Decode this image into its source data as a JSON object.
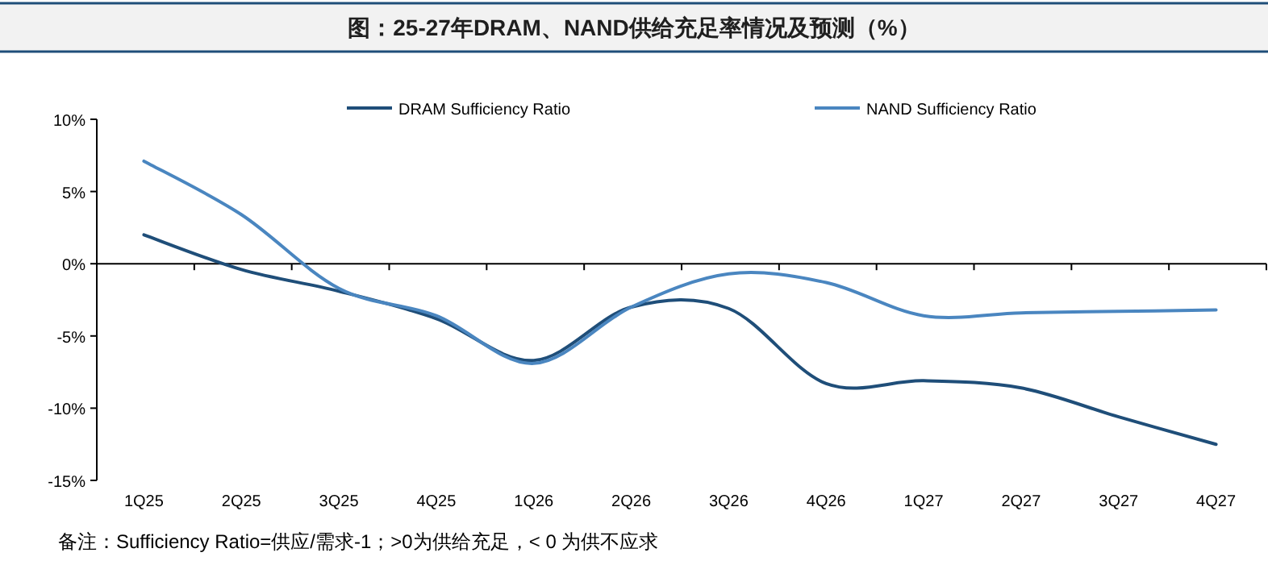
{
  "chart_data": {
    "type": "line",
    "title": "图：25-27年DRAM、NAND供给充足率情况及预测（%）",
    "categories": [
      "1Q25",
      "2Q25",
      "3Q25",
      "4Q25",
      "1Q26",
      "2Q26",
      "3Q26",
      "4Q26",
      "1Q27",
      "2Q27",
      "3Q27",
      "4Q27"
    ],
    "series": [
      {
        "name": "DRAM Sufficiency Ratio",
        "color": "#1f4e79",
        "values": [
          2.0,
          -0.4,
          -1.9,
          -3.8,
          -6.7,
          -3.0,
          -3.1,
          -8.3,
          -8.1,
          -8.6,
          -10.6,
          -12.5
        ]
      },
      {
        "name": "NAND Sufficiency Ratio",
        "color": "#4a86c0",
        "values": [
          7.1,
          3.4,
          -1.7,
          -3.6,
          -6.9,
          -3.0,
          -0.7,
          -1.3,
          -3.6,
          -3.4,
          -3.3,
          -3.2
        ]
      }
    ],
    "ylim": [
      -15,
      10
    ],
    "yticks": [
      {
        "value": -15,
        "label": "-15%"
      },
      {
        "value": -10,
        "label": "-10%"
      },
      {
        "value": -5,
        "label": "-5%"
      },
      {
        "value": 0,
        "label": "0%"
      },
      {
        "value": 5,
        "label": "5%"
      },
      {
        "value": 10,
        "label": "10%"
      }
    ],
    "legend": "top",
    "marker": "none",
    "line_style": "solid",
    "annotations": [
      "备注：Sufficiency Ratio=供应/需求-1；>0为供给充足，< 0 为供不应求"
    ]
  }
}
